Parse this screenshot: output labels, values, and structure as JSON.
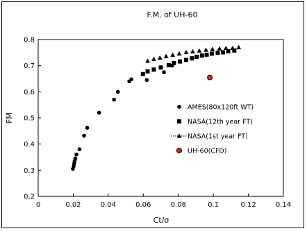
{
  "chart_data": {
    "type": "scatter",
    "title": "F.M. of UH-60",
    "xlabel": "Ct/σ",
    "ylabel": "FM",
    "xlim": [
      0,
      0.14
    ],
    "ylim": [
      0.2,
      0.8
    ],
    "x_ticks": [
      "0",
      "0.02",
      "0.04",
      "0.06",
      "0.08",
      "0.1",
      "0.12",
      "0.14"
    ],
    "y_ticks": [
      "0,2",
      "0.3",
      "0.4",
      "0.5",
      "0.6",
      "0.7",
      "0.8"
    ],
    "grid": "none",
    "legend_position": "lower-right",
    "series": [
      {
        "name": "AMES(80x120ft WT)",
        "marker": "circle",
        "color": "#000000",
        "points": [
          [
            0.0198,
            0.305
          ],
          [
            0.0203,
            0.315
          ],
          [
            0.0205,
            0.325
          ],
          [
            0.0208,
            0.335
          ],
          [
            0.0212,
            0.345
          ],
          [
            0.0218,
            0.36
          ],
          [
            0.0236,
            0.38
          ],
          [
            0.0262,
            0.432
          ],
          [
            0.028,
            0.462
          ],
          [
            0.0348,
            0.52
          ],
          [
            0.0433,
            0.57
          ],
          [
            0.0455,
            0.6
          ],
          [
            0.052,
            0.64
          ],
          [
            0.0532,
            0.648
          ],
          [
            0.062,
            0.645
          ],
          [
            0.0718,
            0.675
          ],
          [
            0.0765,
            0.7
          ]
        ]
      },
      {
        "name": "NASA(12th year FT)",
        "marker": "square",
        "color": "#000000",
        "points": [
          [
            0.0598,
            0.668
          ],
          [
            0.0625,
            0.678
          ],
          [
            0.066,
            0.685
          ],
          [
            0.07,
            0.693
          ],
          [
            0.0745,
            0.702
          ],
          [
            0.0775,
            0.71
          ],
          [
            0.081,
            0.716
          ],
          [
            0.0845,
            0.722
          ],
          [
            0.0878,
            0.728
          ],
          [
            0.0905,
            0.734
          ],
          [
            0.0935,
            0.739
          ],
          [
            0.0962,
            0.742
          ],
          [
            0.0992,
            0.746
          ],
          [
            0.1025,
            0.749
          ],
          [
            0.1055,
            0.751
          ],
          [
            0.1085,
            0.755
          ],
          [
            0.112,
            0.758
          ]
        ]
      },
      {
        "name": "NASA(1st year FT)",
        "marker": "triangle",
        "color": "#000000",
        "points": [
          [
            0.0625,
            0.718
          ],
          [
            0.066,
            0.725
          ],
          [
            0.0695,
            0.73
          ],
          [
            0.073,
            0.736
          ],
          [
            0.0768,
            0.741
          ],
          [
            0.0805,
            0.746
          ],
          [
            0.0845,
            0.751
          ],
          [
            0.0882,
            0.754
          ],
          [
            0.092,
            0.757
          ],
          [
            0.0958,
            0.76
          ],
          [
            0.0995,
            0.763
          ],
          [
            0.1035,
            0.765
          ],
          [
            0.1072,
            0.767
          ],
          [
            0.111,
            0.767
          ],
          [
            0.1145,
            0.77
          ]
        ]
      },
      {
        "name": "UH-60(CFD)",
        "marker": "circle-red",
        "color": "#e02020",
        "points": [
          [
            0.098,
            0.655
          ]
        ]
      }
    ]
  }
}
